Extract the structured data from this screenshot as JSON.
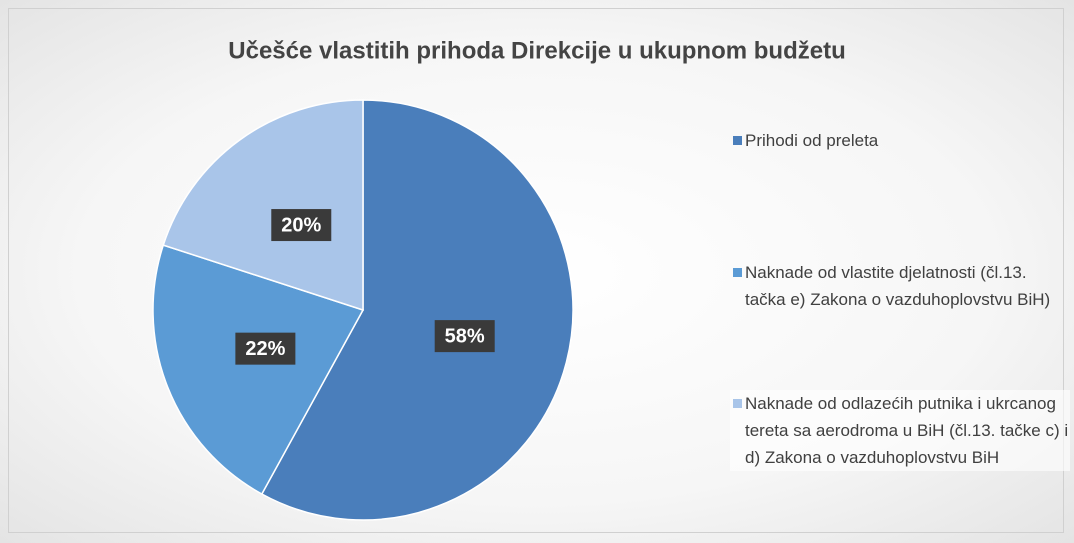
{
  "chart_data": {
    "type": "pie",
    "title": "Učešće vlastitih prihoda Direkcije u ukupnom budžetu",
    "categories": [
      "Prihodi od preleta",
      "Naknade od vlastite djelatnosti (čl.13. tačka e) Zakona o vazduhoplovstvu BiH)",
      "Naknade od odlazećih putnika i ukrcanog tereta sa aerodroma u BiH (čl.13. tačke c) i d) Zakona o vazduhoplovstvu BiH"
    ],
    "values": [
      58,
      22,
      20
    ],
    "value_labels": [
      "58%",
      "22%",
      "20%"
    ],
    "colors": [
      "#4a7ebb",
      "#5b9bd5",
      "#a9c5e9"
    ],
    "legend": "right"
  }
}
